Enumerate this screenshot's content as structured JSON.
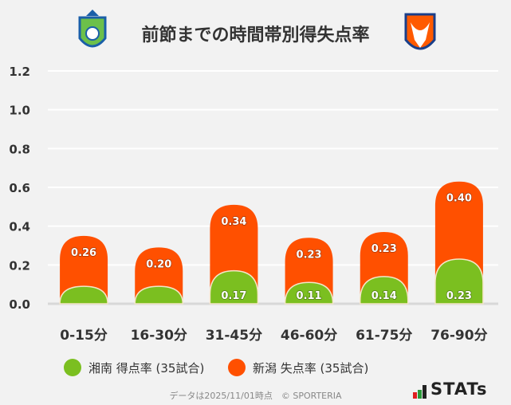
{
  "header": {
    "title": "前節までの時間帯別得失点率",
    "left_logo": "shonan-bellmare-emblem",
    "right_logo": "albirex-niigata-emblem"
  },
  "chart_data": {
    "type": "bar",
    "stacked": true,
    "title": "前節までの時間帯別得失点率",
    "categories": [
      "0-15分",
      "16-30分",
      "31-45分",
      "46-60分",
      "61-75分",
      "76-90分"
    ],
    "series": [
      {
        "name": "湘南 得点率 (35試合)",
        "color": "#7bbf20",
        "values": [
          0.09,
          0.09,
          0.17,
          0.11,
          0.14,
          0.23
        ],
        "labels": [
          "",
          "",
          "0.17",
          "0.11",
          "0.14",
          "0.23"
        ]
      },
      {
        "name": "新潟 失点率 (35試合)",
        "color": "#ff5000",
        "values": [
          0.26,
          0.2,
          0.34,
          0.23,
          0.23,
          0.4
        ],
        "labels": [
          "0.26",
          "0.20",
          "0.34",
          "0.23",
          "0.23",
          "0.40"
        ]
      }
    ],
    "ylim": [
      0,
      1.2
    ],
    "yticks": [
      "0.0",
      "0.2",
      "0.4",
      "0.6",
      "0.8",
      "1.0",
      "1.2"
    ],
    "grid": true,
    "legend": "bottom"
  },
  "footer": {
    "note": "データは2025/11/01時点　© SPORTERIA",
    "brand": "STATs"
  }
}
